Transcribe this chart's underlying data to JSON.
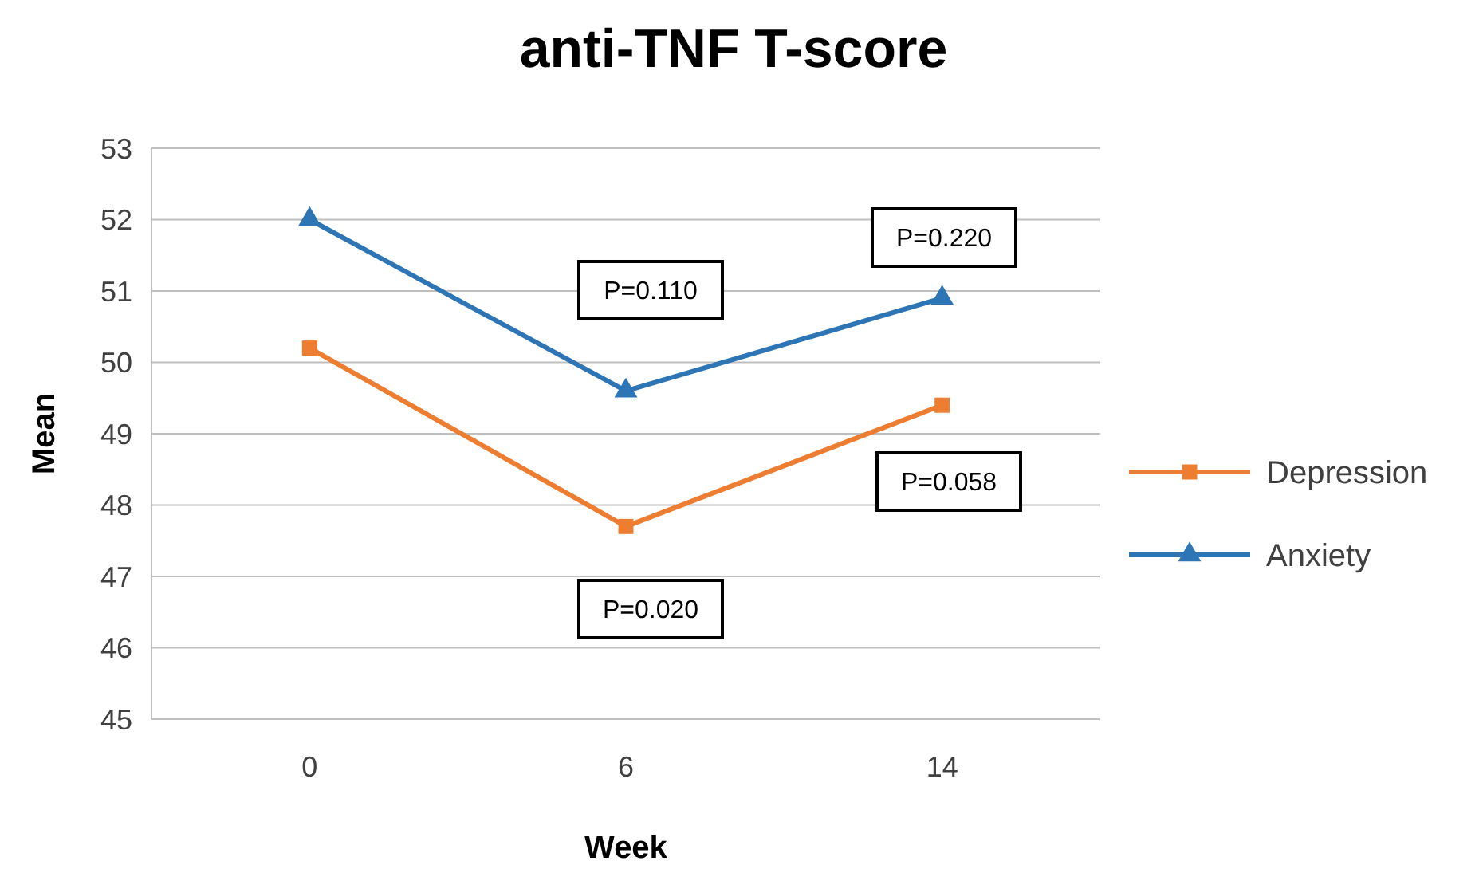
{
  "chart_data": {
    "type": "line",
    "title": "anti-TNF T-score",
    "xlabel": "Week",
    "ylabel": "Mean",
    "categories": [
      "0",
      "6",
      "14"
    ],
    "series": [
      {
        "name": "Depression",
        "color": "#ed7d31",
        "marker": "square",
        "values": [
          50.2,
          47.7,
          49.4
        ]
      },
      {
        "name": "Anxiety",
        "color": "#2e75b6",
        "marker": "triangle",
        "values": [
          52.0,
          49.6,
          50.9
        ]
      }
    ],
    "ylim": [
      45,
      53
    ],
    "yticks": [
      45,
      46,
      47,
      48,
      49,
      50,
      51,
      52,
      53
    ],
    "grid": "y",
    "legend": "right",
    "annotations": [
      "P=0.110",
      "P=0.020",
      "P=0.220",
      "P=0.058"
    ]
  }
}
